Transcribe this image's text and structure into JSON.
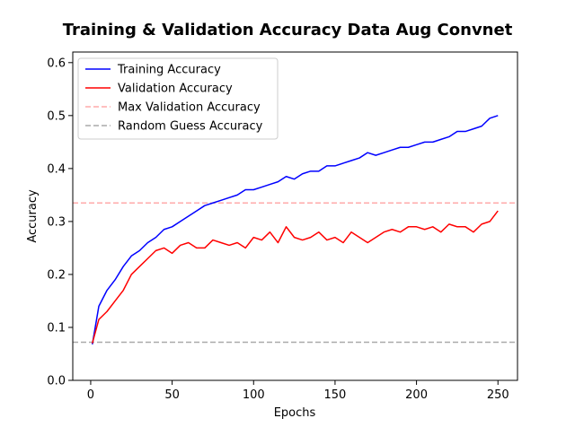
{
  "chart_data": {
    "type": "line",
    "title": "Training & Validation Accuracy Data Aug Convnet",
    "xlabel": "Epochs",
    "ylabel": "Accuracy",
    "xlim": [
      -11,
      262
    ],
    "ylim": [
      0.0,
      0.62
    ],
    "xticks": [
      0,
      50,
      100,
      150,
      200,
      250
    ],
    "yticks": [
      0.0,
      0.1,
      0.2,
      0.3,
      0.4,
      0.5,
      0.6
    ],
    "grid": false,
    "legend_position": "top-left",
    "x": [
      1,
      5,
      10,
      15,
      20,
      25,
      30,
      35,
      40,
      45,
      50,
      55,
      60,
      65,
      70,
      75,
      80,
      85,
      90,
      95,
      100,
      105,
      110,
      115,
      120,
      125,
      130,
      135,
      140,
      145,
      150,
      155,
      160,
      165,
      170,
      175,
      180,
      185,
      190,
      195,
      200,
      205,
      210,
      215,
      220,
      225,
      230,
      235,
      240,
      245,
      250
    ],
    "series": [
      {
        "name": "Training Accuracy",
        "color": "#0000ff",
        "style": "solid",
        "values": [
          0.068,
          0.14,
          0.17,
          0.19,
          0.215,
          0.235,
          0.245,
          0.26,
          0.27,
          0.285,
          0.29,
          0.3,
          0.31,
          0.32,
          0.33,
          0.335,
          0.34,
          0.345,
          0.35,
          0.36,
          0.36,
          0.365,
          0.37,
          0.375,
          0.385,
          0.38,
          0.39,
          0.395,
          0.395,
          0.405,
          0.405,
          0.41,
          0.415,
          0.42,
          0.43,
          0.425,
          0.43,
          0.435,
          0.44,
          0.44,
          0.445,
          0.45,
          0.45,
          0.455,
          0.46,
          0.47,
          0.47,
          0.475,
          0.48,
          0.495,
          0.5
        ]
      },
      {
        "name": "Validation Accuracy",
        "color": "#ff0000",
        "style": "solid",
        "values": [
          0.07,
          0.115,
          0.13,
          0.15,
          0.17,
          0.2,
          0.215,
          0.23,
          0.245,
          0.25,
          0.24,
          0.255,
          0.26,
          0.25,
          0.25,
          0.265,
          0.26,
          0.255,
          0.26,
          0.25,
          0.27,
          0.265,
          0.28,
          0.26,
          0.29,
          0.27,
          0.265,
          0.27,
          0.28,
          0.265,
          0.27,
          0.26,
          0.28,
          0.27,
          0.26,
          0.27,
          0.28,
          0.285,
          0.28,
          0.29,
          0.29,
          0.285,
          0.29,
          0.28,
          0.295,
          0.29,
          0.29,
          0.28,
          0.295,
          0.3,
          0.32
        ]
      }
    ],
    "reference_lines": [
      {
        "name": "Max Validation Accuracy",
        "y": 0.335,
        "color": "#ffaaaa",
        "style": "dashed"
      },
      {
        "name": "Random Guess Accuracy",
        "y": 0.072,
        "color": "#aaaaaa",
        "style": "dashed"
      }
    ]
  }
}
